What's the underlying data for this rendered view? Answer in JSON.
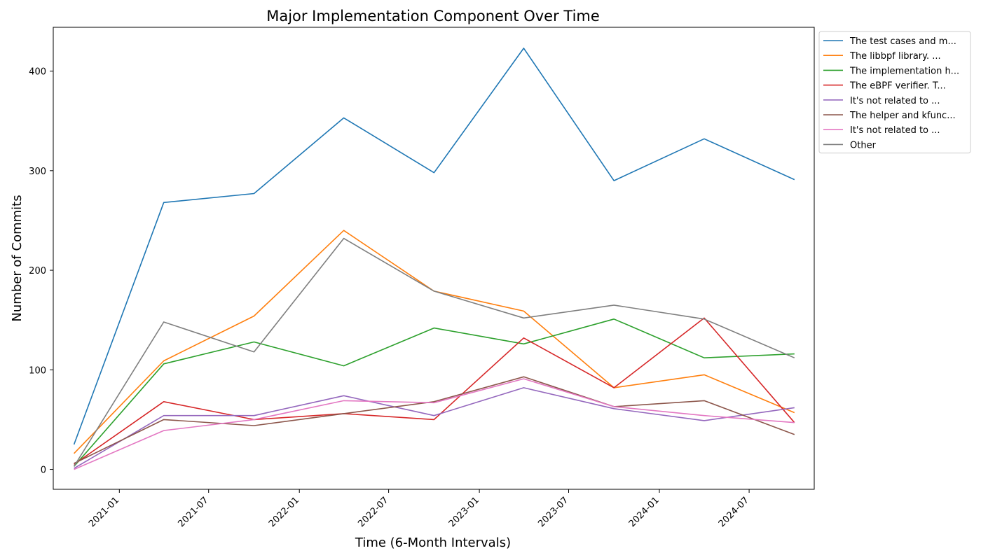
{
  "chart_data": {
    "type": "line",
    "title": "Major Implementation Component Over Time",
    "xlabel": "Time (6-Month Intervals)",
    "ylabel": "Number of Commits",
    "x_axis_type": "date",
    "x": [
      "2020-10-01",
      "2021-04-01",
      "2021-10-01",
      "2022-04-01",
      "2022-10-01",
      "2023-04-01",
      "2023-10-01",
      "2024-04-01",
      "2024-10-01"
    ],
    "x_ticks": [
      "2021-01",
      "2021-07",
      "2022-01",
      "2022-07",
      "2023-01",
      "2023-07",
      "2024-01",
      "2024-07"
    ],
    "xlim": [
      "2020-08-20",
      "2024-11-10"
    ],
    "y_ticks": [
      0,
      100,
      200,
      300,
      400
    ],
    "ylim": [
      -20,
      444
    ],
    "grid": false,
    "legend_position": "outside-top-right",
    "series": [
      {
        "name": "The test cases and m...",
        "color": "#1f77b4",
        "values": [
          25,
          268,
          277,
          353,
          298,
          423,
          290,
          332,
          291
        ]
      },
      {
        "name": "The libbpf library. ...",
        "color": "#ff7f0e",
        "values": [
          16,
          109,
          154,
          240,
          179,
          159,
          82,
          95,
          57
        ]
      },
      {
        "name": "The implementation h...",
        "color": "#2ca02c",
        "values": [
          3,
          106,
          128,
          104,
          142,
          126,
          151,
          112,
          116
        ]
      },
      {
        "name": "The eBPF verifier. T...",
        "color": "#d62728",
        "values": [
          5,
          68,
          50,
          56,
          50,
          132,
          82,
          152,
          47
        ]
      },
      {
        "name": "It's not related to ...",
        "color": "#9467bd",
        "values": [
          1,
          54,
          54,
          74,
          54,
          82,
          61,
          49,
          62
        ]
      },
      {
        "name": "The helper and kfunc...",
        "color": "#8c564b",
        "values": [
          6,
          50,
          44,
          56,
          68,
          93,
          63,
          69,
          35
        ]
      },
      {
        "name": "It's not related to ...",
        "color": "#e377c2",
        "values": [
          0,
          39,
          50,
          69,
          67,
          91,
          63,
          54,
          47
        ]
      },
      {
        "name": "Other",
        "color": "#7f7f7f",
        "values": [
          3,
          148,
          118,
          232,
          179,
          152,
          165,
          151,
          112
        ]
      }
    ]
  }
}
